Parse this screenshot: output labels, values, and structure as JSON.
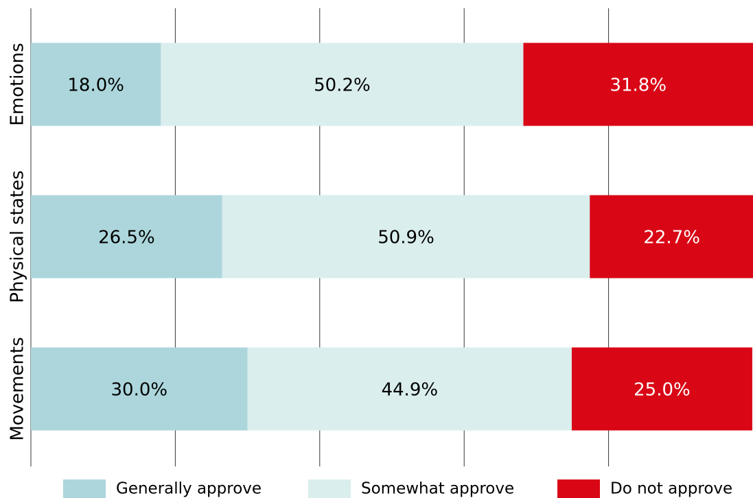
{
  "chart_data": {
    "type": "stacked-bar-horizontal",
    "categories": [
      "Emotions",
      "Physical states",
      "Movements"
    ],
    "series": [
      {
        "name": "Generally approve",
        "color": "#acd6dc",
        "values": [
          18.0,
          26.5,
          30.0
        ],
        "value_labels": [
          "18.0%",
          "26.5%",
          "30.0%"
        ],
        "label_color": "#000000"
      },
      {
        "name": "Somewhat approve",
        "color": "#daeeee",
        "values": [
          50.2,
          50.9,
          44.9
        ],
        "value_labels": [
          "50.2%",
          "50.9%",
          "44.9%"
        ],
        "label_color": "#000000"
      },
      {
        "name": "Do not approve",
        "color": "#d90716",
        "values": [
          31.8,
          22.7,
          25.0
        ],
        "value_labels": [
          "31.8%",
          "22.7%",
          "25.0%"
        ],
        "label_color": "#ffffff"
      }
    ],
    "xlim": [
      0,
      100
    ],
    "xticks": [
      0,
      20,
      40,
      60,
      80
    ],
    "grid": true,
    "legend": "bottom"
  }
}
